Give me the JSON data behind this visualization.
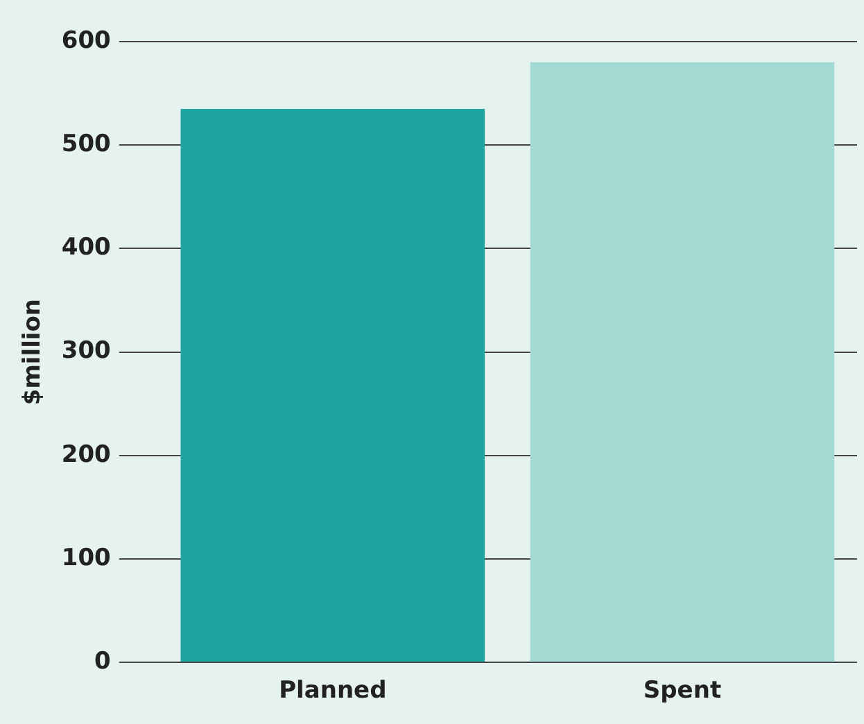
{
  "chart_data": {
    "type": "bar",
    "ylabel": "$million",
    "categories": [
      "Planned",
      "Spent"
    ],
    "values": [
      535,
      580
    ],
    "colors": [
      "#21a3a2",
      "#a3dad4"
    ],
    "ylim": [
      0,
      600
    ],
    "yticks": [
      0,
      100,
      200,
      300,
      400,
      500,
      600
    ],
    "grid": "y",
    "legend": false
  }
}
